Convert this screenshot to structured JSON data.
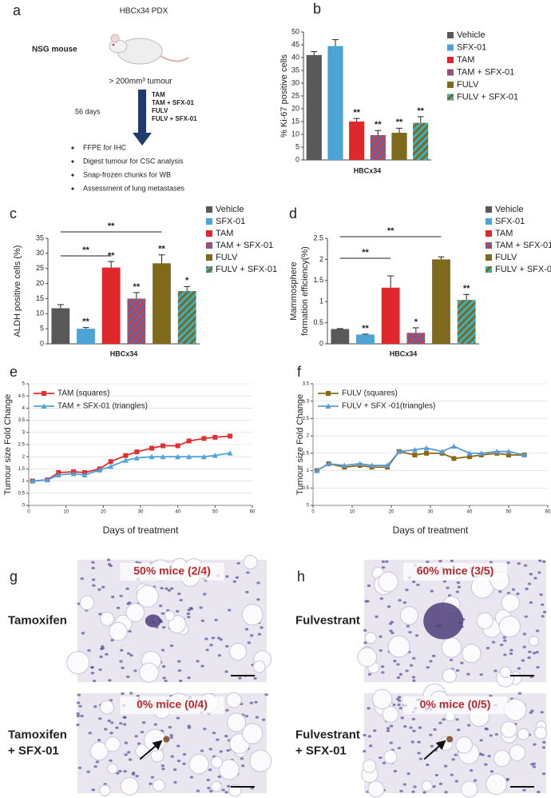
{
  "diagram": {
    "panel": "a",
    "model": "HBCx34 PDX",
    "host": "NSG mouse",
    "size": "> 200mm³ tumour",
    "duration": "56 days",
    "treatments": [
      "TAM",
      "TAM + SFX-01",
      "FULV",
      "FULV + SFX-01"
    ],
    "endpoints": [
      "FFPE for IHC",
      "Digest tumour for CSC analysis",
      "Snap-frozen chunks for WB",
      "Assessment of lung metastases"
    ]
  },
  "chart_data": [
    {
      "type": "bar",
      "panel": "b",
      "x_label": "HBCx34",
      "y_label": "% Ki-67 positive cells",
      "categories": [
        "Vehicle",
        "SFX-01",
        "TAM",
        "TAM + SFX-01",
        "FULV",
        "FULV + SFX-01"
      ],
      "values": [
        41,
        44.5,
        15,
        9.7,
        10.6,
        14.5
      ],
      "errors": [
        1.3,
        2.5,
        1.2,
        1.8,
        1.8,
        2.4
      ],
      "stars": [
        null,
        null,
        "**",
        "**",
        "**",
        "**"
      ],
      "colors": [
        "#595959",
        "#4ba3d6",
        "#e0282c",
        "#d9373c",
        "#7f6a1c",
        "#7f6a1c"
      ],
      "hatch_colors": [
        null,
        null,
        null,
        "#4a6fb5",
        null,
        "#35b2c9"
      ],
      "ylim": [
        0,
        50
      ],
      "yticks": [
        0,
        5,
        10,
        15,
        20,
        25,
        30,
        35,
        40,
        45,
        50
      ]
    },
    {
      "type": "bar",
      "panel": "c",
      "x_label": "HBCx34",
      "y_label": "ALDH positive cells (%)",
      "categories": [
        "Vehicle",
        "SFX-01",
        "TAM",
        "TAM + SFX-01",
        "FULV",
        "FULV + SFX-01"
      ],
      "values": [
        11.8,
        5,
        25.3,
        15,
        26.7,
        17.5
      ],
      "errors": [
        1.2,
        0.4,
        2,
        2,
        2.8,
        1.5
      ],
      "stars": [
        null,
        "**",
        "**",
        "**",
        "**",
        "*"
      ],
      "brackets": [
        {
          "from": "Vehicle",
          "to": "TAM",
          "label": "**"
        },
        {
          "from": "Vehicle",
          "to": "FULV",
          "label": "**"
        }
      ],
      "colors": [
        "#595959",
        "#4ba3d6",
        "#e0282c",
        "#d9373c",
        "#7f6a1c",
        "#7f6a1c"
      ],
      "hatch_colors": [
        null,
        null,
        null,
        "#4a6fb5",
        null,
        "#35b2c9"
      ],
      "ylim": [
        0,
        35
      ],
      "yticks": [
        0,
        5,
        10,
        15,
        20,
        25,
        30,
        35
      ]
    },
    {
      "type": "bar",
      "panel": "d",
      "x_label": "HBCx34",
      "y_label_lines": [
        "Mammosphere",
        "formation efficiency(%)"
      ],
      "categories": [
        "Vehicle",
        "SFX-01",
        "TAM",
        "TAM + SFX-01",
        "FULV",
        "FULV + SFX-01"
      ],
      "values": [
        0.35,
        0.22,
        1.33,
        0.26,
        2.0,
        1.04
      ],
      "errors": [
        0.01,
        0.01,
        0.28,
        0.12,
        0.06,
        0.13
      ],
      "stars": [
        null,
        "**",
        null,
        "*",
        null,
        "**"
      ],
      "brackets": [
        {
          "from": "Vehicle",
          "to": "TAM",
          "label": "**"
        },
        {
          "from": "Vehicle",
          "to": "FULV",
          "label": "**"
        }
      ],
      "colors": [
        "#595959",
        "#4ba3d6",
        "#e0282c",
        "#d9373c",
        "#7f6a1c",
        "#7f6a1c"
      ],
      "hatch_colors": [
        null,
        null,
        null,
        "#4a6fb5",
        null,
        "#35b2c9"
      ],
      "ylim": [
        0,
        2.5
      ],
      "yticks": [
        0,
        0.5,
        1,
        1.5,
        2,
        2.5
      ]
    },
    {
      "type": "line",
      "panel": "e",
      "x_label": "Days of treatment",
      "y_label": "Tumour size Fold Change",
      "x": [
        1,
        5,
        8,
        12,
        15,
        19,
        22,
        26,
        29,
        33,
        36,
        40,
        43,
        47,
        50,
        54
      ],
      "series": [
        {
          "name": "TAM (squares)",
          "color": "#e03030",
          "marker": "square",
          "values": [
            1,
            1.05,
            1.35,
            1.38,
            1.35,
            1.5,
            1.8,
            2.05,
            2.2,
            2.35,
            2.45,
            2.45,
            2.65,
            2.75,
            2.8,
            2.85
          ]
        },
        {
          "name": "TAM + SFX-01 (triangles)",
          "color": "#4fa3d9",
          "marker": "triangle",
          "values": [
            1,
            1.05,
            1.25,
            1.3,
            1.25,
            1.45,
            1.6,
            1.85,
            1.95,
            2.0,
            2.0,
            2.0,
            2.0,
            2.0,
            2.05,
            2.15
          ]
        }
      ],
      "xlim": [
        0,
        60
      ],
      "ylim": [
        0,
        5
      ],
      "xticks": [
        0,
        10,
        20,
        30,
        40,
        50,
        60
      ],
      "yticks": [
        0,
        0.5,
        1,
        1.5,
        2,
        2.5,
        3,
        3.5,
        4,
        4.5,
        5
      ],
      "grid": true
    },
    {
      "type": "line",
      "panel": "f",
      "x_label": "Days of treatment",
      "y_label": "Tumour size Fold Change",
      "x": [
        1,
        4,
        8,
        12,
        15,
        19,
        22,
        26,
        29,
        33,
        36,
        40,
        43,
        47,
        50,
        54
      ],
      "series": [
        {
          "name": "FULV (squares)",
          "color": "#8b6914",
          "marker": "square",
          "values": [
            1,
            1.2,
            1.1,
            1.15,
            1.1,
            1.1,
            1.55,
            1.45,
            1.5,
            1.5,
            1.35,
            1.4,
            1.45,
            1.5,
            1.45,
            1.45
          ]
        },
        {
          "name": "FULV + SFX -01(triangles)",
          "color": "#5b9bd5",
          "marker": "triangle",
          "values": [
            1,
            1.2,
            1.15,
            1.2,
            1.15,
            1.15,
            1.55,
            1.6,
            1.65,
            1.55,
            1.7,
            1.5,
            1.5,
            1.55,
            1.55,
            1.45
          ]
        }
      ],
      "xlim": [
        0,
        60
      ],
      "ylim": [
        0,
        3.5
      ],
      "xticks": [
        0,
        10,
        20,
        30,
        40,
        50,
        60
      ],
      "yticks": [
        0,
        0.5,
        1,
        1.5,
        2,
        2.5,
        3,
        3.5
      ],
      "grid": true
    }
  ],
  "micrographs": [
    {
      "panel": "g",
      "rows": [
        {
          "label_lines": [
            "Tamoxifen"
          ],
          "caption": "50% mice (2/4)"
        },
        {
          "label_lines": [
            "Tamoxifen",
            "+ SFX-01"
          ],
          "caption": "0% mice (0/4)"
        }
      ]
    },
    {
      "panel": "h",
      "rows": [
        {
          "label_lines": [
            "Fulvestrant"
          ],
          "caption": "60% mice (3/5)"
        },
        {
          "label_lines": [
            "Fulvestrant",
            "+ SFX-01"
          ],
          "caption": "0% mice (0/5)"
        }
      ]
    }
  ]
}
